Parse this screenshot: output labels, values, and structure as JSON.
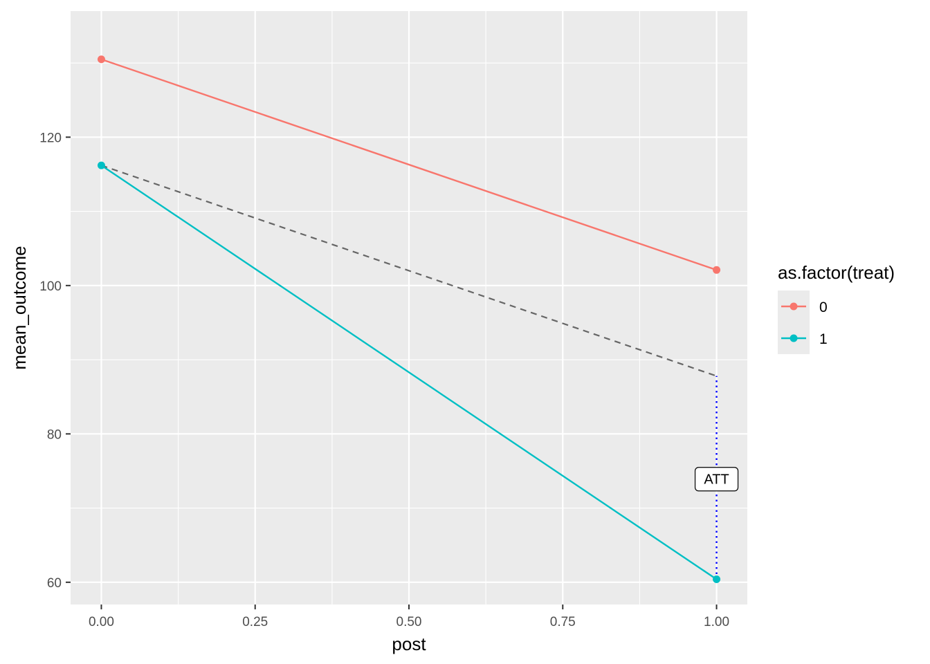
{
  "chart_data": {
    "type": "line",
    "title": "",
    "xlabel": "post",
    "ylabel": "mean_outcome",
    "xlim": [
      -0.05,
      1.05
    ],
    "ylim": [
      57,
      137
    ],
    "x_ticks": [
      0,
      0.25,
      0.5,
      0.75,
      1
    ],
    "x_tick_labels": [
      "0.00",
      "0.25",
      "0.50",
      "0.75",
      "1.00"
    ],
    "y_ticks": [
      60,
      80,
      100,
      120
    ],
    "y_tick_labels": [
      "60",
      "80",
      "100",
      "120"
    ],
    "x_minor": [
      0.125,
      0.375,
      0.625,
      0.875
    ],
    "y_minor": [
      70,
      90,
      110,
      130
    ],
    "grid": true,
    "legend": {
      "title": "as.factor(treat)",
      "position": "right",
      "entries": [
        "0",
        "1"
      ]
    },
    "series": [
      {
        "name": "0",
        "color": "#F8766D",
        "x": [
          0,
          1
        ],
        "y": [
          130.5,
          102.1
        ],
        "style": "solid",
        "points": true
      },
      {
        "name": "1",
        "color": "#00BFC4",
        "x": [
          0,
          1
        ],
        "y": [
          116.2,
          60.4
        ],
        "style": "solid",
        "points": true
      }
    ],
    "counterfactual": {
      "color": "#666666",
      "x": [
        0,
        1
      ],
      "y": [
        116.2,
        87.8
      ],
      "style": "dashed"
    },
    "att_segment": {
      "color": "#0000FF",
      "x": 1,
      "y_from": 60.4,
      "y_to": 87.8,
      "style": "dotted"
    },
    "annotations": [
      {
        "text": "ATT",
        "x": 1,
        "y": 73.9
      }
    ],
    "colors": {
      "panel_bg": "#EBEBEB",
      "grid": "#FFFFFF",
      "legend_key_bg": "#EBEBEB"
    }
  }
}
